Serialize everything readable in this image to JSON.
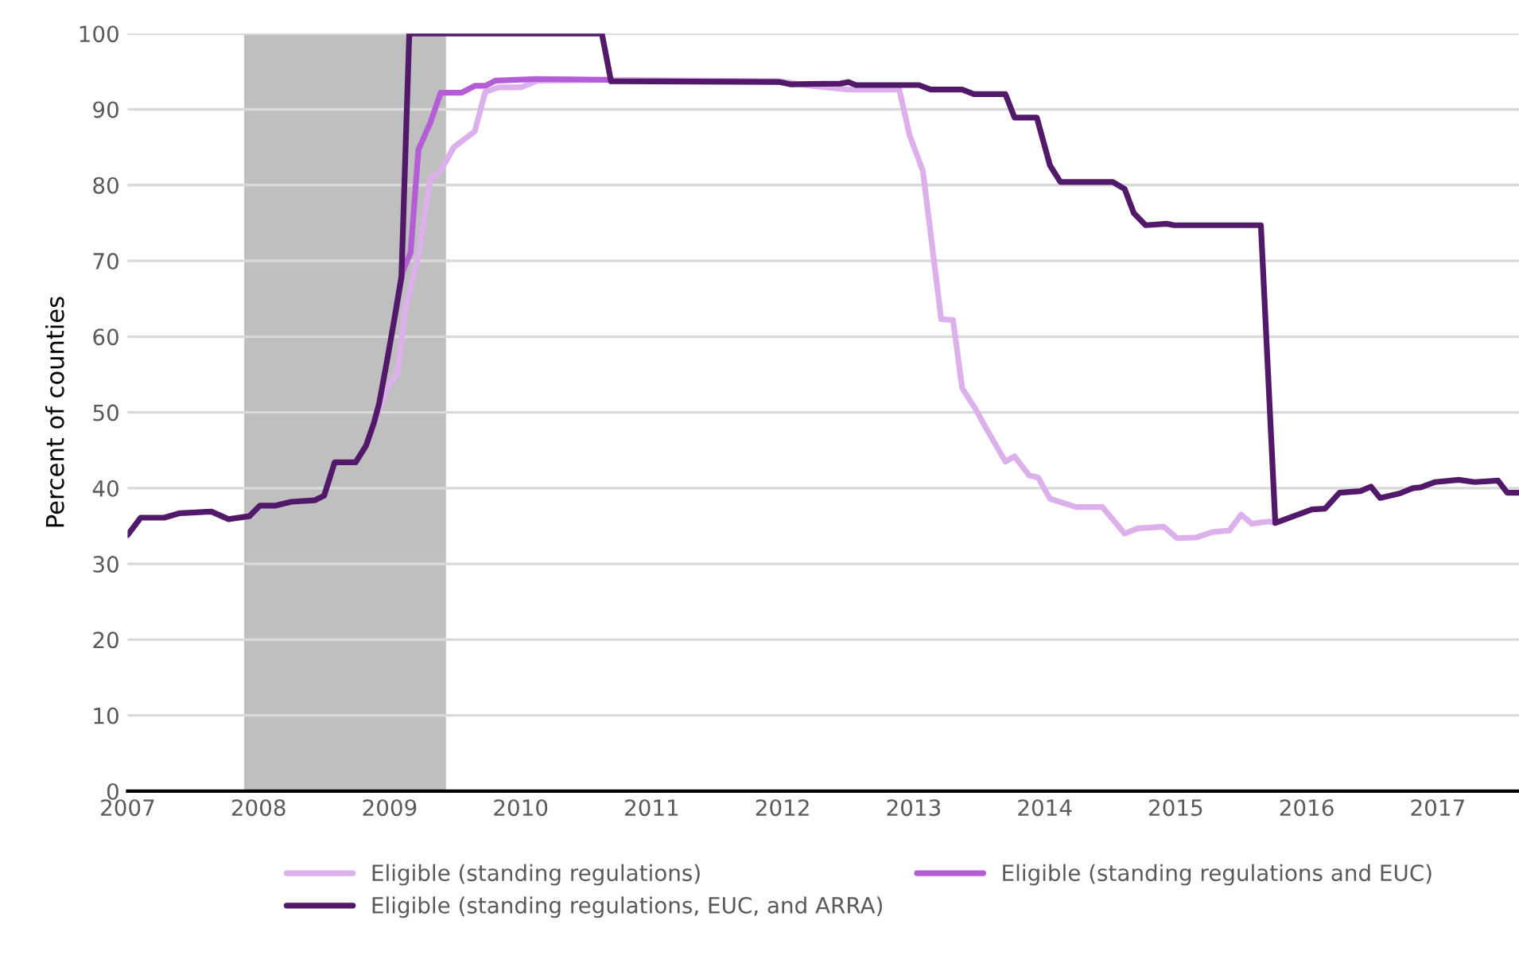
{
  "chart_data": {
    "type": "line",
    "ylabel": "Percent of counties",
    "xlim": [
      2007,
      2017.62
    ],
    "xticks": [
      2007,
      2008,
      2009,
      2010,
      2011,
      2012,
      2013,
      2014,
      2015,
      2016,
      2017
    ],
    "ylim": [
      0,
      100
    ],
    "yticks": [
      0,
      10,
      20,
      30,
      40,
      50,
      60,
      70,
      80,
      90,
      100
    ],
    "grid": "y",
    "legend": "bottom",
    "marker": "none",
    "line_style": "solid",
    "bands": [
      {
        "axis": "x",
        "from": 2007.89,
        "to": 2009.43,
        "color": "#bfbfbf"
      }
    ],
    "series": [
      {
        "name": "Eligible (standing regulations)",
        "color": "#dcb0ea",
        "x": [
          2008.88,
          2008.98,
          2009.06,
          2009.12,
          2009.22,
          2009.31,
          2009.39,
          2009.49,
          2009.65,
          2009.73,
          2009.83,
          2010.0,
          2010.13,
          2010.68,
          2011.98,
          2012.22,
          2012.5,
          2012.89,
          2012.97,
          2013.07,
          2013.21,
          2013.3,
          2013.37,
          2013.47,
          2013.55,
          2013.7,
          2013.77,
          2013.88,
          2013.95,
          2014.04,
          2014.24,
          2014.44,
          2014.61,
          2014.71,
          2014.91,
          2015.01,
          2015.16,
          2015.28,
          2015.41,
          2015.5,
          2015.58,
          2015.71,
          2015.76
        ],
        "values": [
          48.6,
          53.2,
          55.3,
          63.7,
          70.7,
          80.8,
          81.9,
          85.0,
          87.1,
          92.3,
          92.9,
          92.9,
          93.8,
          93.9,
          93.7,
          93.1,
          92.6,
          92.6,
          86.5,
          81.9,
          62.3,
          62.2,
          53.2,
          50.5,
          48.0,
          43.5,
          44.2,
          41.7,
          41.4,
          38.6,
          37.5,
          37.5,
          34.0,
          34.7,
          34.9,
          33.4,
          33.5,
          34.2,
          34.4,
          36.5,
          35.3,
          35.6,
          35.4
        ]
      },
      {
        "name": "Eligible (standing regulations and EUC)",
        "color": "#b45dd6",
        "x": [
          2009.04,
          2009.1,
          2009.16,
          2009.22,
          2009.31,
          2009.39,
          2009.55,
          2009.65,
          2009.73,
          2009.81,
          2010.12,
          2010.68
        ],
        "values": [
          62.7,
          68.6,
          71.1,
          84.7,
          88.2,
          92.2,
          92.2,
          93.1,
          93.1,
          93.8,
          94.0,
          93.9
        ]
      },
      {
        "name": "Eligible (standing regulations, EUC, and ARRA)",
        "color": "#52196a",
        "x": [
          2007.0,
          2007.1,
          2007.28,
          2007.4,
          2007.64,
          2007.77,
          2007.93,
          2008.01,
          2008.13,
          2008.25,
          2008.43,
          2008.5,
          2008.58,
          2008.74,
          2008.82,
          2008.88,
          2008.92,
          2008.98,
          2009.04,
          2009.09,
          2009.15,
          2010.62,
          2010.69,
          2011.98,
          2012.06,
          2012.44,
          2012.5,
          2012.56,
          2013.04,
          2013.13,
          2013.37,
          2013.46,
          2013.7,
          2013.77,
          2013.94,
          2014.04,
          2014.12,
          2014.52,
          2014.61,
          2014.68,
          2014.77,
          2014.93,
          2014.99,
          2015.65,
          2015.76,
          2016.04,
          2016.14,
          2016.25,
          2016.41,
          2016.49,
          2016.56,
          2016.71,
          2016.81,
          2016.87,
          2016.98,
          2017.16,
          2017.28,
          2017.46,
          2017.53,
          2017.62
        ],
        "values": [
          33.8,
          36.1,
          36.1,
          36.7,
          36.9,
          35.9,
          36.3,
          37.7,
          37.7,
          38.2,
          38.4,
          39.0,
          43.4,
          43.4,
          45.6,
          48.6,
          51.2,
          56.8,
          62.7,
          67.9,
          100,
          100,
          93.7,
          93.6,
          93.3,
          93.4,
          93.6,
          93.2,
          93.2,
          92.6,
          92.6,
          92.0,
          92.0,
          88.9,
          88.9,
          82.6,
          80.4,
          80.4,
          79.5,
          76.3,
          74.7,
          74.9,
          74.7,
          74.7,
          35.4,
          37.2,
          37.3,
          39.4,
          39.6,
          40.2,
          38.7,
          39.3,
          40.0,
          40.1,
          40.8,
          41.1,
          40.8,
          41.0,
          39.4,
          39.4
        ]
      }
    ]
  }
}
